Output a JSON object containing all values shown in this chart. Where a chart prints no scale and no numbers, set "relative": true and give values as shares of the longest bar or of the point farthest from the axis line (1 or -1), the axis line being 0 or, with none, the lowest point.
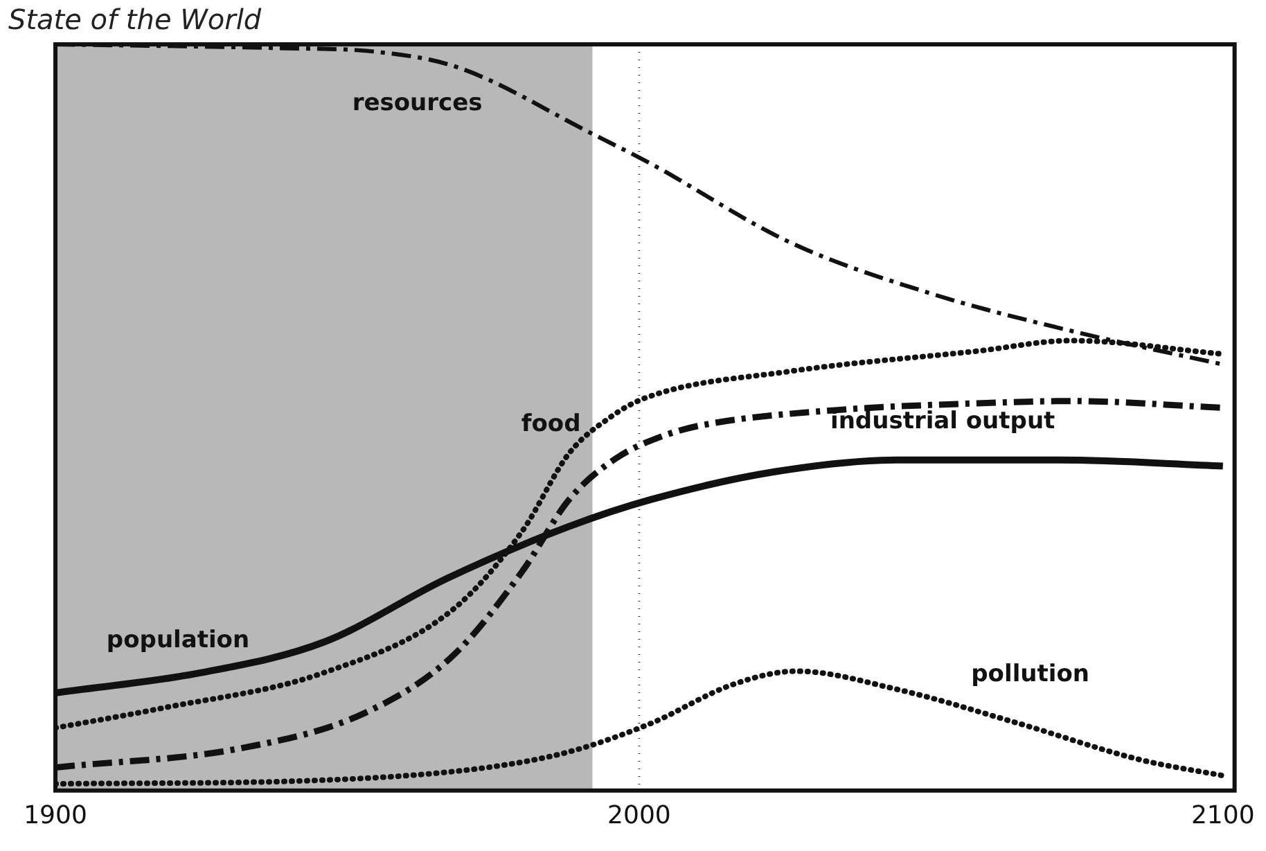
{
  "chart_data": {
    "type": "line",
    "title": "State of the World",
    "relative": true,
    "xlim": [
      1900,
      2102
    ],
    "xticks": [
      1900,
      2000,
      2100
    ],
    "grid": false,
    "legend": false,
    "marker": "none",
    "bands": [
      {
        "axis": "x",
        "from": 1900,
        "to": 1992,
        "color": "#b8b8b8"
      }
    ],
    "ref_lines": [
      {
        "axis": "x",
        "value": 2000,
        "line_style": "dotted",
        "color": "#333333"
      }
    ],
    "series": [
      {
        "name": "resources",
        "color": "#111111",
        "line_style": "dashed",
        "x": [
          1900,
          1938,
          1955,
          1969,
          1992,
          2002,
          2026,
          2050,
          2074,
          2100
        ],
        "values": [
          1.0,
          0.995,
          0.99,
          0.969,
          0.88,
          0.84,
          0.734,
          0.666,
          0.616,
          0.571
        ]
      },
      {
        "name": "food",
        "color": "#111111",
        "line_style": "dotted",
        "x": [
          1900,
          1918,
          1946,
          1968,
          1980,
          1988,
          1995,
          2001,
          2026,
          2058,
          2074,
          2100
        ],
        "values": [
          0.084,
          0.11,
          0.158,
          0.242,
          0.348,
          0.452,
          0.5,
          0.526,
          0.562,
          0.589,
          0.603,
          0.585
        ]
      },
      {
        "name": "industrial output",
        "color": "#111111",
        "line_style": "dashed",
        "x": [
          1900,
          1932,
          1953,
          1968,
          1980,
          1988,
          1996,
          2004,
          2011,
          2034,
          2058,
          2074,
          2100
        ],
        "values": [
          0.031,
          0.057,
          0.104,
          0.18,
          0.294,
          0.39,
          0.445,
          0.475,
          0.49,
          0.51,
          0.519,
          0.522,
          0.513
        ]
      },
      {
        "name": "population",
        "color": "#111111",
        "line_style": "solid",
        "x": [
          1900,
          1925,
          1946,
          1967,
          1988,
          2002,
          2023,
          2044,
          2072,
          2100
        ],
        "values": [
          0.131,
          0.158,
          0.199,
          0.284,
          0.354,
          0.39,
          0.427,
          0.443,
          0.443,
          0.435
        ]
      },
      {
        "name": "pollution",
        "color": "#111111",
        "line_style": "dotted",
        "x": [
          1900,
          1946,
          1974,
          1988,
          2002,
          2016,
          2027,
          2044,
          2065,
          2086,
          2100
        ],
        "values": [
          0.009,
          0.014,
          0.031,
          0.052,
          0.09,
          0.142,
          0.16,
          0.136,
          0.09,
          0.041,
          0.02
        ]
      }
    ]
  }
}
